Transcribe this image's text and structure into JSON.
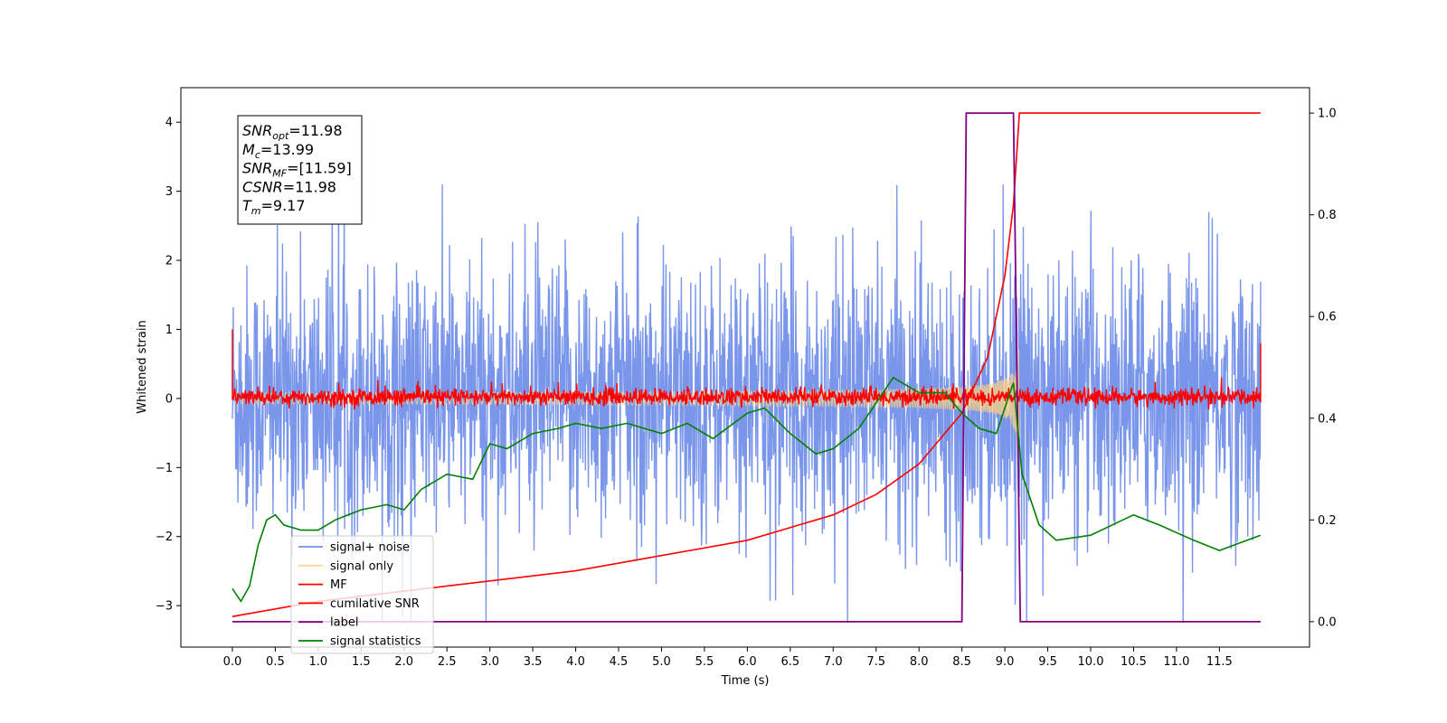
{
  "chart_data": {
    "type": "line",
    "xlabel": "Time (s)",
    "ylabel": "Whitened strain",
    "xlim": [
      -0.6,
      12.55
    ],
    "ylim": [
      -3.6,
      4.5
    ],
    "y2lim": [
      -0.05,
      1.05
    ],
    "x_ticks": [
      "0.0",
      "0.5",
      "1.0",
      "1.5",
      "2.0",
      "2.5",
      "3.0",
      "3.5",
      "4.0",
      "4.5",
      "5.0",
      "5.5",
      "6.0",
      "6.5",
      "7.0",
      "7.5",
      "8.0",
      "8.5",
      "9.0",
      "9.5",
      "10.0",
      "10.5",
      "11.0",
      "11.5"
    ],
    "y_ticks": [
      "4",
      "3",
      "2",
      "1",
      "0",
      "−1",
      "−2",
      "−3"
    ],
    "y2_ticks": [
      "1.0",
      "0.8",
      "0.6",
      "0.4",
      "0.2",
      "0.0"
    ],
    "annotation_lines": [
      {
        "var": "SNR",
        "sub": "opt",
        "value": "=11.98"
      },
      {
        "var": "M",
        "sub": "c",
        "value": "=13.99"
      },
      {
        "var": "SNR",
        "sub": "MF",
        "value": "=[11.59]"
      },
      {
        "var": "CSNR",
        "sub": "",
        "value": "=11.98"
      },
      {
        "var": "T",
        "sub": "m",
        "value": "=9.17"
      }
    ],
    "legend": {
      "placement": "lower-left",
      "entries": [
        "signal+ noise",
        "signal only",
        "MF",
        "cumilative SNR",
        "label",
        "signal statistics"
      ]
    },
    "colors": {
      "signal_noise": "#4169e1",
      "signal_only": "#ffd280",
      "mf": "#ff0000",
      "cumulative_snr": "#ff0000",
      "label": "#800080",
      "signal_statistics": "#008000"
    },
    "series": [
      {
        "name": "signal+ noise",
        "axis": "left",
        "description_values": "noise band spanning roughly -1.5 to 1.5 with spikes to ±2.8, t=0..11.98"
      },
      {
        "name": "signal only",
        "axis": "left",
        "chirp_end_time": 9.17,
        "peak_amplitude": 0.9
      },
      {
        "name": "MF",
        "axis": "left",
        "values_range": [
          -0.15,
          0.3
        ],
        "edge_values": [
          1.0,
          0.8
        ]
      },
      {
        "name": "cumilative SNR",
        "axis": "right",
        "x": [
          0.0,
          1.0,
          2.0,
          3.0,
          4.0,
          5.0,
          6.0,
          7.0,
          7.5,
          8.0,
          8.5,
          8.8,
          9.0,
          9.1,
          9.17,
          9.2,
          10.0,
          11.98
        ],
        "y": [
          0.01,
          0.04,
          0.06,
          0.08,
          0.1,
          0.13,
          0.16,
          0.21,
          0.25,
          0.31,
          0.41,
          0.52,
          0.68,
          0.82,
          1.0,
          1.0,
          1.0,
          1.0
        ]
      },
      {
        "name": "label",
        "axis": "right",
        "x": [
          0.0,
          8.5,
          8.55,
          9.1,
          9.18,
          11.98
        ],
        "y": [
          0.0,
          0.0,
          1.0,
          1.0,
          0.0,
          0.0
        ]
      },
      {
        "name": "signal statistics",
        "axis": "right",
        "x": [
          0.0,
          0.1,
          0.2,
          0.3,
          0.4,
          0.5,
          0.6,
          0.8,
          1.0,
          1.2,
          1.5,
          1.8,
          2.0,
          2.2,
          2.5,
          2.8,
          3.0,
          3.2,
          3.5,
          3.8,
          4.0,
          4.3,
          4.6,
          5.0,
          5.3,
          5.6,
          6.0,
          6.2,
          6.5,
          6.8,
          7.0,
          7.3,
          7.5,
          7.7,
          8.0,
          8.3,
          8.5,
          8.7,
          8.9,
          9.1,
          9.2,
          9.4,
          9.6,
          10.0,
          10.5,
          10.8,
          11.2,
          11.5,
          11.98
        ],
        "y": [
          0.065,
          0.04,
          0.07,
          0.15,
          0.2,
          0.21,
          0.19,
          0.18,
          0.18,
          0.2,
          0.22,
          0.23,
          0.22,
          0.26,
          0.29,
          0.28,
          0.35,
          0.34,
          0.37,
          0.38,
          0.39,
          0.38,
          0.39,
          0.37,
          0.39,
          0.36,
          0.41,
          0.42,
          0.37,
          0.33,
          0.34,
          0.38,
          0.43,
          0.48,
          0.45,
          0.45,
          0.41,
          0.38,
          0.37,
          0.47,
          0.29,
          0.19,
          0.16,
          0.17,
          0.21,
          0.19,
          0.16,
          0.14,
          0.17
        ]
      }
    ]
  }
}
